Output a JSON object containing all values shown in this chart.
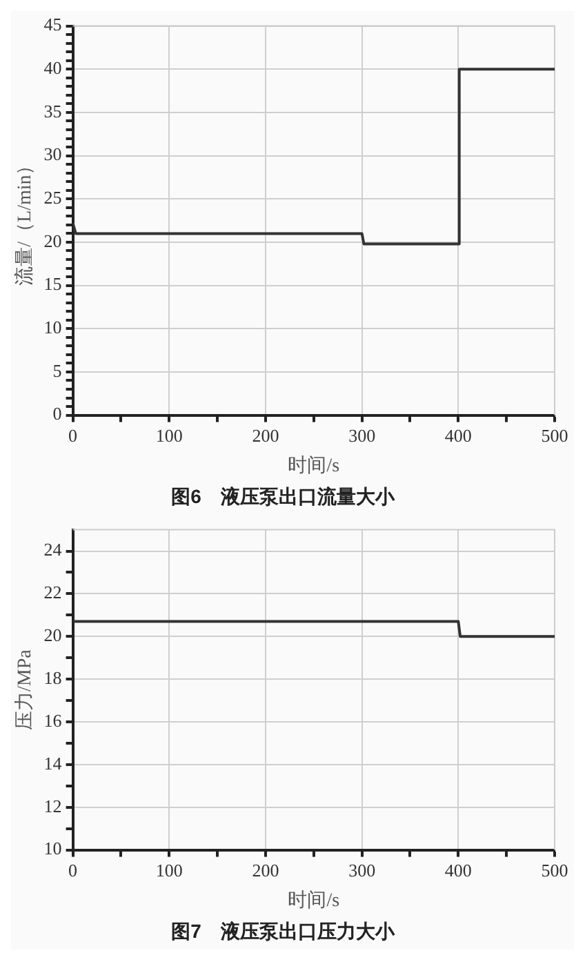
{
  "chart_data": [
    {
      "type": "line",
      "title": "图6　液压泵出口流量大小",
      "xlabel": "时间/s",
      "ylabel": "流量/（L/min）",
      "xlim": [
        0,
        500
      ],
      "ylim": [
        0,
        45
      ],
      "xticks": [
        0,
        {
          "value": 50,
          "label": null
        },
        100,
        {
          "value": 150,
          "label": null
        },
        200,
        {
          "value": 250,
          "label": null
        },
        300,
        {
          "value": 350,
          "label": null
        },
        400,
        {
          "value": 450,
          "label": null
        },
        500
      ],
      "yticks": [
        0,
        {
          "value": 1,
          "label": null
        },
        {
          "value": 2,
          "label": null
        },
        {
          "value": 3,
          "label": null
        },
        {
          "value": 4,
          "label": null
        },
        5,
        {
          "value": 6,
          "label": null
        },
        {
          "value": 7,
          "label": null
        },
        {
          "value": 8,
          "label": null
        },
        {
          "value": 9,
          "label": null
        },
        10,
        {
          "value": 11,
          "label": null
        },
        {
          "value": 12,
          "label": null
        },
        {
          "value": 13,
          "label": null
        },
        {
          "value": 14,
          "label": null
        },
        15,
        {
          "value": 16,
          "label": null
        },
        {
          "value": 17,
          "label": null
        },
        {
          "value": 18,
          "label": null
        },
        {
          "value": 19,
          "label": null
        },
        20,
        {
          "value": 21,
          "label": null
        },
        {
          "value": 22,
          "label": null
        },
        {
          "value": 23,
          "label": null
        },
        {
          "value": 24,
          "label": null
        },
        25,
        {
          "value": 26,
          "label": null
        },
        {
          "value": 27,
          "label": null
        },
        {
          "value": 28,
          "label": null
        },
        {
          "value": 29,
          "label": null
        },
        30,
        {
          "value": 31,
          "label": null
        },
        {
          "value": 32,
          "label": null
        },
        {
          "value": 33,
          "label": null
        },
        {
          "value": 34,
          "label": null
        },
        35,
        {
          "value": 36,
          "label": null
        },
        {
          "value": 37,
          "label": null
        },
        {
          "value": 38,
          "label": null
        },
        {
          "value": 39,
          "label": null
        },
        40,
        {
          "value": 41,
          "label": null
        },
        {
          "value": 42,
          "label": null
        },
        {
          "value": 43,
          "label": null
        },
        {
          "value": 44,
          "label": null
        },
        45
      ],
      "grid": true,
      "marker": "none",
      "line_style": "solid",
      "series": [
        {
          "color": "#333333",
          "x": [
            0,
            3,
            300,
            302,
            400,
            401,
            500
          ],
          "values": [
            22.2,
            21,
            21,
            19.8,
            19.8,
            40,
            40
          ]
        }
      ]
    },
    {
      "type": "line",
      "title": "图7　液压泵出口压力大小",
      "xlabel": "时间/s",
      "ylabel": "压力/MPa",
      "xlim": [
        0,
        500
      ],
      "ylim": [
        10,
        25
      ],
      "xticks": [
        0,
        {
          "value": 50,
          "label": null
        },
        100,
        {
          "value": 150,
          "label": null
        },
        200,
        {
          "value": 250,
          "label": null
        },
        300,
        {
          "value": 350,
          "label": null
        },
        400,
        {
          "value": 450,
          "label": null
        },
        500
      ],
      "yticks": [
        10,
        {
          "value": 11,
          "label": null
        },
        12,
        {
          "value": 13,
          "label": null
        },
        14,
        {
          "value": 15,
          "label": null
        },
        16,
        {
          "value": 17,
          "label": null
        },
        18,
        {
          "value": 19,
          "label": null
        },
        20,
        {
          "value": 21,
          "label": null
        },
        22,
        {
          "value": 23,
          "label": null
        },
        24
      ],
      "grid": true,
      "marker": "none",
      "line_style": "solid",
      "series": [
        {
          "color": "#333333",
          "x": [
            0,
            300,
            400,
            402,
            500
          ],
          "values": [
            20.7,
            20.7,
            20.7,
            20,
            20
          ]
        }
      ]
    }
  ]
}
